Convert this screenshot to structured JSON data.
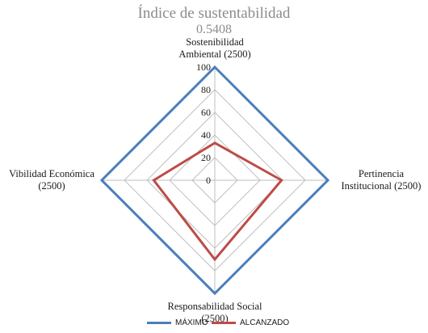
{
  "header": {
    "title": "Índice de sustentabilidad",
    "subtitle": "0.5408"
  },
  "chart_data": {
    "type": "radar",
    "title": "Índice de sustentabilidad",
    "subtitle": "0.5408",
    "axes": [
      {
        "label_lines": [
          "Sostenibilidad",
          "Ambiental (2500)"
        ]
      },
      {
        "label_lines": [
          "Pertinencia",
          "Institucional (2500)"
        ]
      },
      {
        "label_lines": [
          "Responsabilidad Social",
          "(2500)"
        ]
      },
      {
        "label_lines": [
          "Vibilidad Económica",
          "(2500)"
        ]
      }
    ],
    "r_range": [
      0,
      100
    ],
    "ticks": [
      "0",
      "20",
      "40",
      "60",
      "80",
      "100"
    ],
    "tick_values": [
      0,
      20,
      40,
      60,
      80,
      100
    ],
    "grid": true,
    "legend_position": "bottom",
    "series": [
      {
        "name": "MÁXIMO",
        "color": "#4a7ebb",
        "values": [
          100,
          100,
          100,
          100
        ]
      },
      {
        "name": "ALCANZADO",
        "color": "#be4b48",
        "values": [
          33,
          59,
          70,
          54
        ]
      }
    ]
  }
}
